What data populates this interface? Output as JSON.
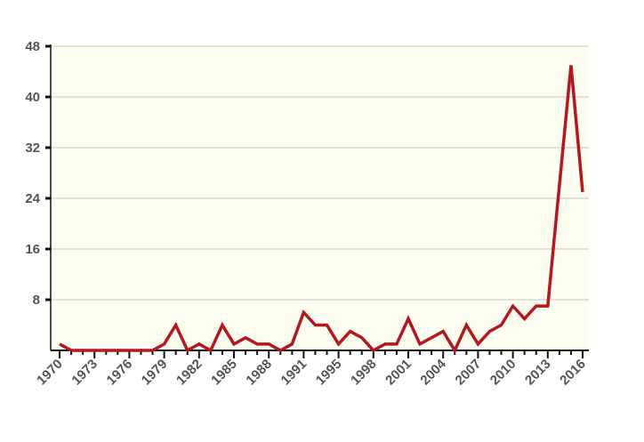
{
  "chart_data": {
    "type": "line",
    "categories": [
      "1970",
      null,
      null,
      "1973",
      null,
      null,
      "1976",
      null,
      null,
      "1979",
      null,
      null,
      "1982",
      null,
      null,
      "1985",
      null,
      null,
      "1988",
      null,
      null,
      "1991",
      null,
      null,
      "1995",
      null,
      null,
      "1998",
      null,
      null,
      "2001",
      null,
      null,
      "2004",
      null,
      null,
      "2007",
      null,
      null,
      "2010",
      null,
      null,
      "2013",
      null,
      null,
      "2016"
    ],
    "values": [
      1,
      0,
      0,
      0,
      0,
      0,
      0,
      0,
      0,
      1,
      4,
      0,
      1,
      0,
      4,
      1,
      2,
      1,
      1,
      0,
      1,
      6,
      4,
      4,
      1,
      3,
      2,
      0,
      1,
      1,
      5,
      1,
      2,
      3,
      0,
      4,
      1,
      3,
      4,
      7,
      5,
      7,
      7,
      26,
      45,
      25
    ],
    "color": "#b5171e",
    "ylim": [
      0,
      48
    ],
    "yticks": [
      8,
      16,
      24,
      32,
      40,
      48
    ],
    "grid": true
  }
}
